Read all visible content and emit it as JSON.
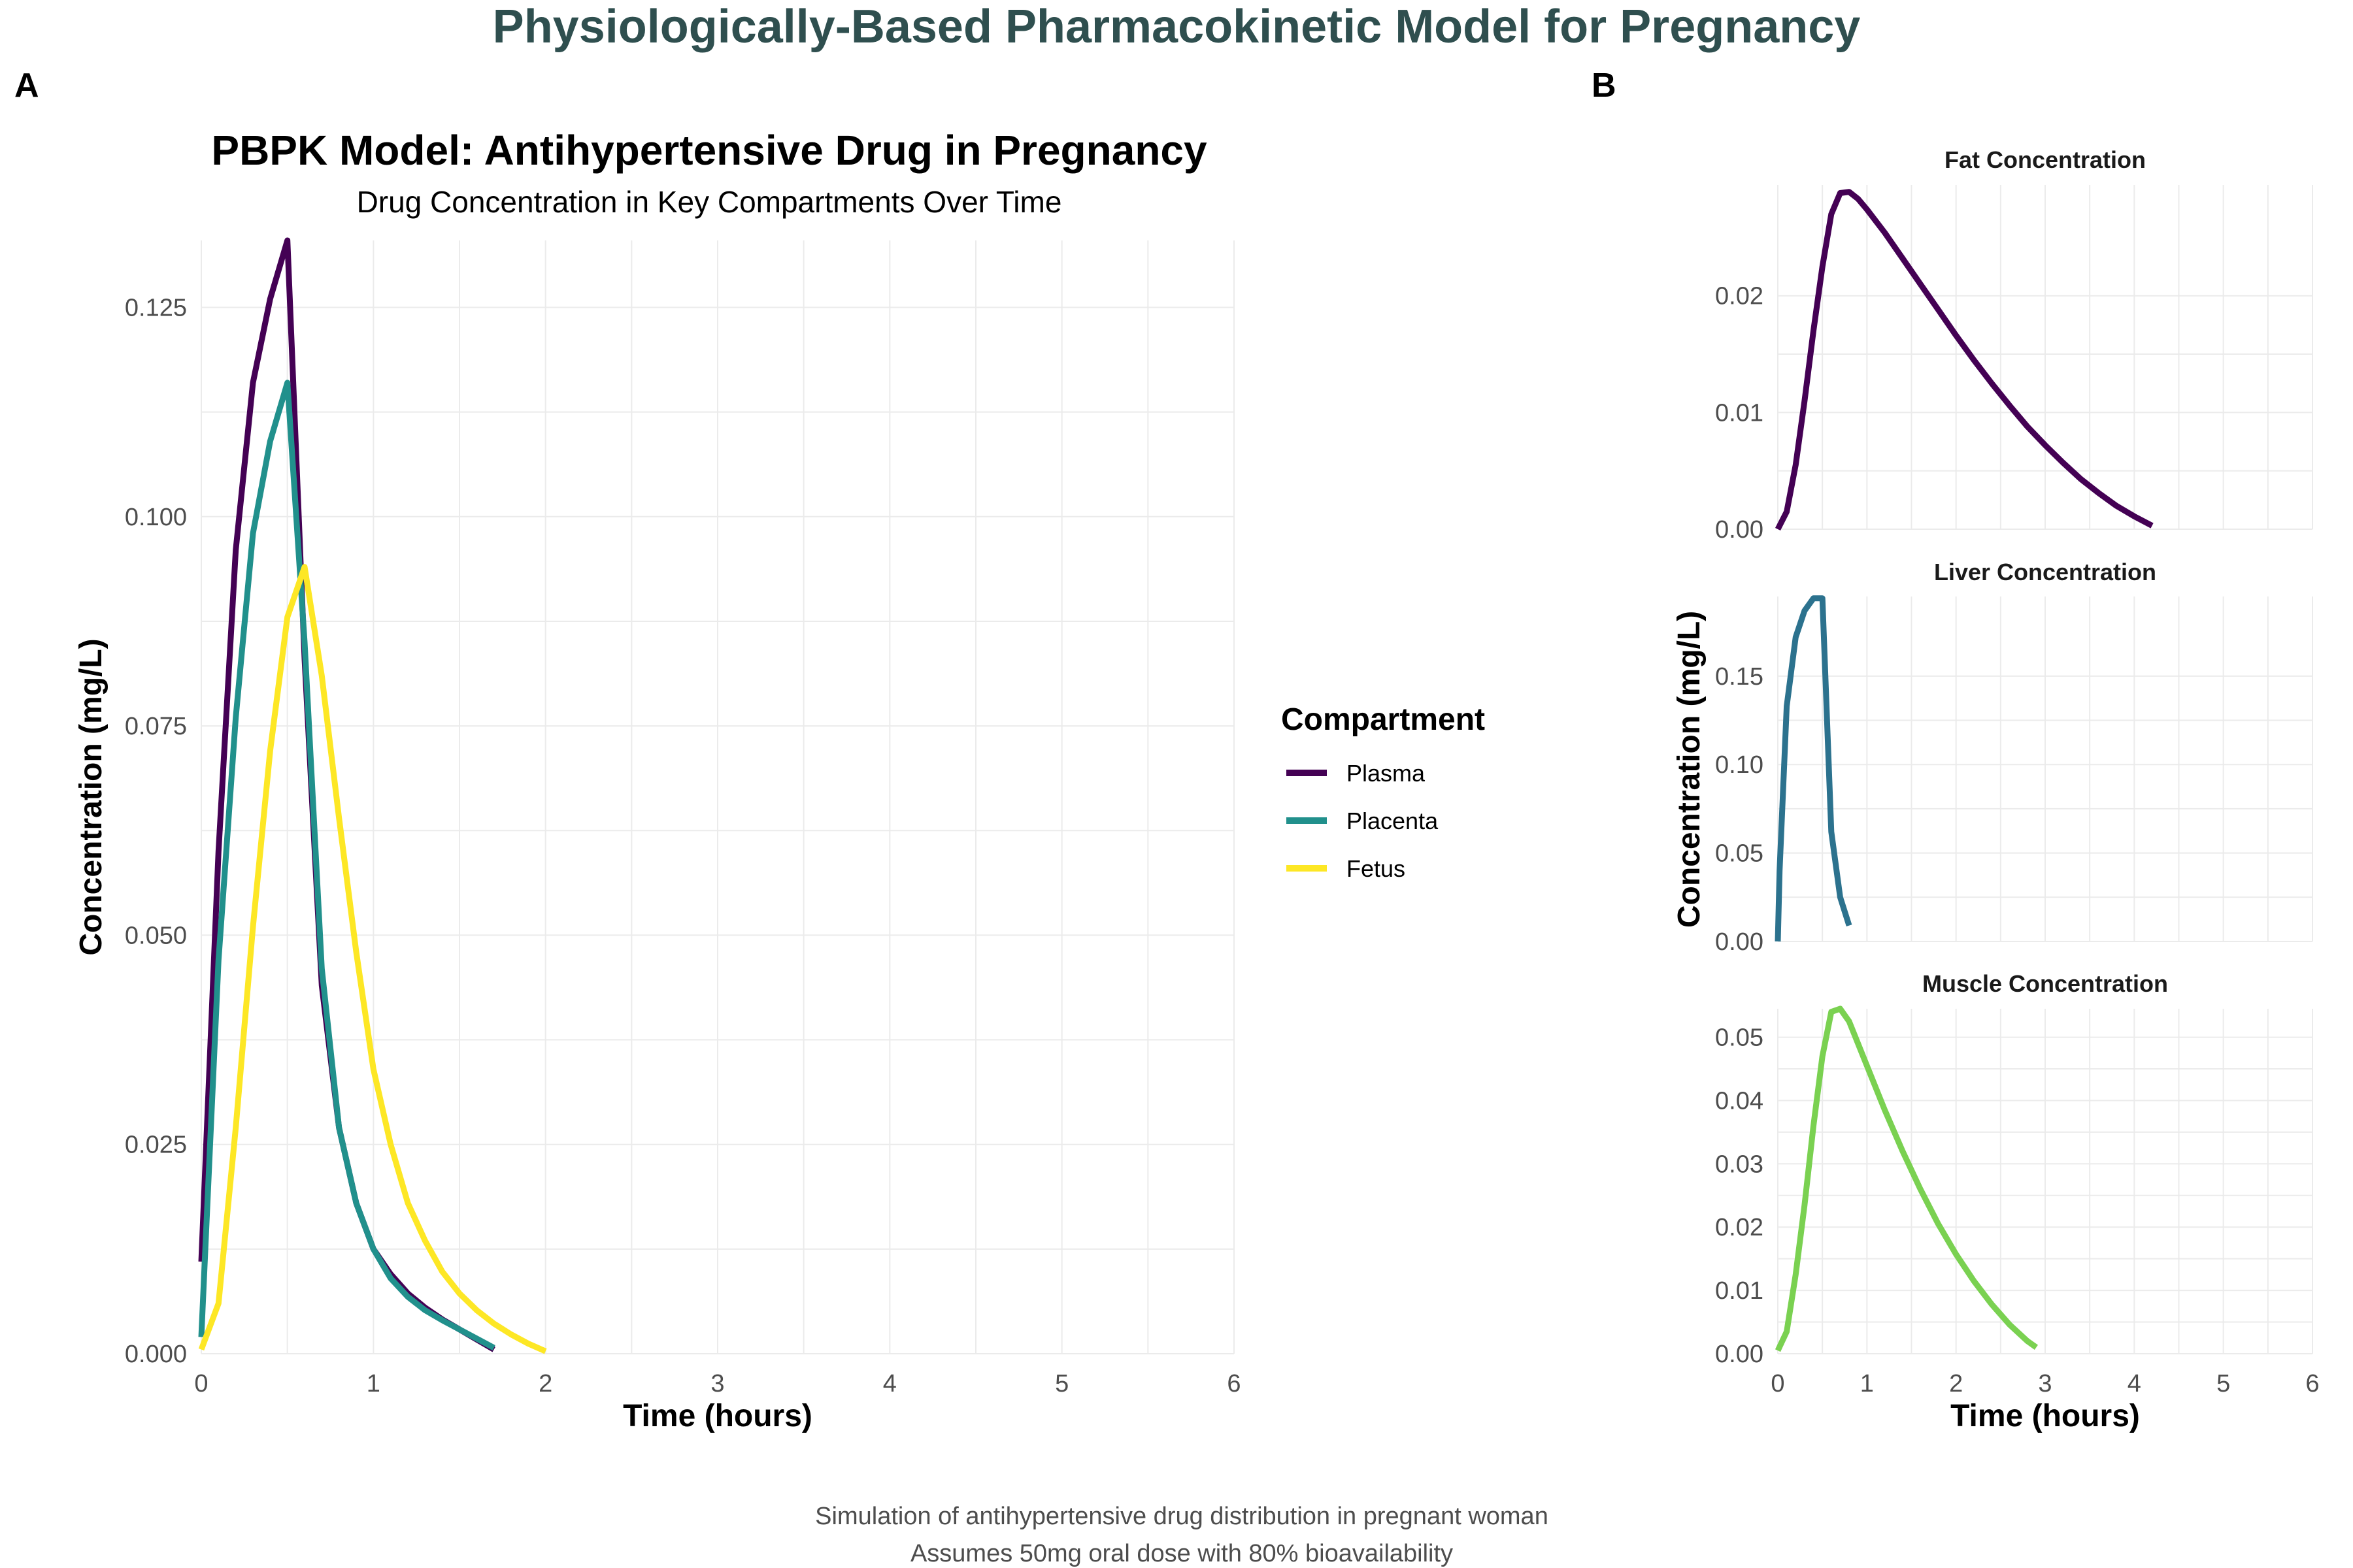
{
  "figure_title": "Physiologically-Based Pharmacokinetic Model for Pregnancy",
  "caption_lines": [
    "Simulation of antihypertensive drug distribution in pregnant woman",
    "Assumes 50mg oral dose with 80% bioavailability"
  ],
  "chart_data": [
    {
      "panel": "A",
      "type": "line",
      "title": "PBPK Model: Antihypertensive Drug in Pregnancy",
      "subtitle": "Drug Concentration in Key Compartments Over Time",
      "xlabel": "Time (hours)",
      "ylabel": "Concentration (mg/L)",
      "xlim": [
        0,
        6
      ],
      "ylim": [
        0,
        0.133
      ],
      "xticks": [
        0,
        1,
        2,
        3,
        4,
        5,
        6
      ],
      "yticks": [
        0,
        0.025,
        0.05,
        0.075,
        0.1,
        0.125
      ],
      "ytick_labels": [
        "0.000",
        "0.025",
        "0.050",
        "0.075",
        "0.100",
        "0.125"
      ],
      "grid": true,
      "legend": {
        "title": "Compartment",
        "position": "right"
      },
      "series": [
        {
          "name": "Plasma",
          "color": "#440154",
          "x": [
            0,
            0.1,
            0.2,
            0.3,
            0.4,
            0.5,
            0.6,
            0.7,
            0.8,
            0.9,
            1.0,
            1.1,
            1.2,
            1.3,
            1.4,
            1.5,
            1.6,
            1.7
          ],
          "y": [
            0.011,
            0.06,
            0.096,
            0.116,
            0.126,
            0.133,
            0.083,
            0.044,
            0.027,
            0.018,
            0.0125,
            0.0095,
            0.0072,
            0.0055,
            0.0041,
            0.0029,
            0.0017,
            0.0005
          ]
        },
        {
          "name": "Placenta",
          "color": "#21908C",
          "x": [
            0,
            0.1,
            0.2,
            0.3,
            0.4,
            0.5,
            0.6,
            0.7,
            0.8,
            0.9,
            1.0,
            1.1,
            1.2,
            1.3,
            1.4,
            1.5,
            1.6,
            1.7
          ],
          "y": [
            0.002,
            0.047,
            0.076,
            0.098,
            0.109,
            0.116,
            0.085,
            0.046,
            0.027,
            0.018,
            0.0125,
            0.009,
            0.0068,
            0.0052,
            0.004,
            0.0029,
            0.0018,
            0.0007
          ]
        },
        {
          "name": "Fetus",
          "color": "#FDE725",
          "x": [
            0,
            0.1,
            0.2,
            0.3,
            0.4,
            0.5,
            0.6,
            0.7,
            0.8,
            0.9,
            1.0,
            1.1,
            1.2,
            1.3,
            1.4,
            1.5,
            1.6,
            1.7,
            1.8,
            1.9,
            2.0
          ],
          "y": [
            0.0005,
            0.006,
            0.027,
            0.051,
            0.072,
            0.088,
            0.094,
            0.081,
            0.064,
            0.048,
            0.034,
            0.025,
            0.018,
            0.0135,
            0.0098,
            0.0072,
            0.0052,
            0.0036,
            0.0023,
            0.0012,
            0.0003
          ]
        }
      ]
    },
    {
      "panel": "B",
      "type": "line",
      "xlabel": "Time (hours)",
      "ylabel": "Concentration (mg/L)",
      "xlim": [
        0,
        6
      ],
      "xticks": [
        0,
        1,
        2,
        3,
        4,
        5,
        6
      ],
      "grid": true,
      "facets": [
        {
          "title": "Fat Concentration",
          "color": "#440154",
          "ylim": [
            0,
            0.0295
          ],
          "yticks": [
            0,
            0.01,
            0.02
          ],
          "ytick_labels": [
            "0.00",
            "0.01",
            "0.02"
          ],
          "x": [
            0,
            0.1,
            0.2,
            0.3,
            0.4,
            0.5,
            0.6,
            0.7,
            0.8,
            0.9,
            1.0,
            1.2,
            1.4,
            1.6,
            1.8,
            2.0,
            2.2,
            2.4,
            2.6,
            2.8,
            3.0,
            3.2,
            3.4,
            3.6,
            3.8,
            4.0,
            4.2
          ],
          "y": [
            0.0,
            0.0015,
            0.0055,
            0.011,
            0.017,
            0.0225,
            0.027,
            0.0288,
            0.0289,
            0.0283,
            0.0274,
            0.0254,
            0.0232,
            0.021,
            0.0188,
            0.0166,
            0.0145,
            0.0125,
            0.0106,
            0.0088,
            0.0072,
            0.0057,
            0.0043,
            0.0031,
            0.002,
            0.0011,
            0.0003
          ]
        },
        {
          "title": "Liver Concentration",
          "color": "#2C728E",
          "ylim": [
            0,
            0.195
          ],
          "yticks": [
            0,
            0.05,
            0.1,
            0.15
          ],
          "ytick_labels": [
            "0.00",
            "0.05",
            "0.10",
            "0.15"
          ],
          "x": [
            0,
            0.02,
            0.1,
            0.2,
            0.3,
            0.4,
            0.5,
            0.6,
            0.7,
            0.8
          ],
          "y": [
            0.0,
            0.04,
            0.133,
            0.172,
            0.187,
            0.194,
            0.194,
            0.062,
            0.025,
            0.009
          ]
        },
        {
          "title": "Muscle Concentration",
          "color": "#7AD151",
          "ylim": [
            0,
            0.0545
          ],
          "yticks": [
            0,
            0.01,
            0.02,
            0.03,
            0.04,
            0.05
          ],
          "ytick_labels": [
            "0.00",
            "0.01",
            "0.02",
            "0.03",
            "0.04",
            "0.05"
          ],
          "x": [
            0,
            0.1,
            0.2,
            0.3,
            0.4,
            0.5,
            0.6,
            0.7,
            0.8,
            0.9,
            1.0,
            1.2,
            1.4,
            1.6,
            1.8,
            2.0,
            2.2,
            2.4,
            2.6,
            2.8,
            2.9
          ],
          "y": [
            0.0005,
            0.0035,
            0.0125,
            0.0235,
            0.036,
            0.047,
            0.054,
            0.0545,
            0.0525,
            0.049,
            0.0455,
            0.0385,
            0.032,
            0.026,
            0.0205,
            0.0157,
            0.0115,
            0.0078,
            0.0046,
            0.002,
            0.001
          ]
        }
      ]
    }
  ]
}
